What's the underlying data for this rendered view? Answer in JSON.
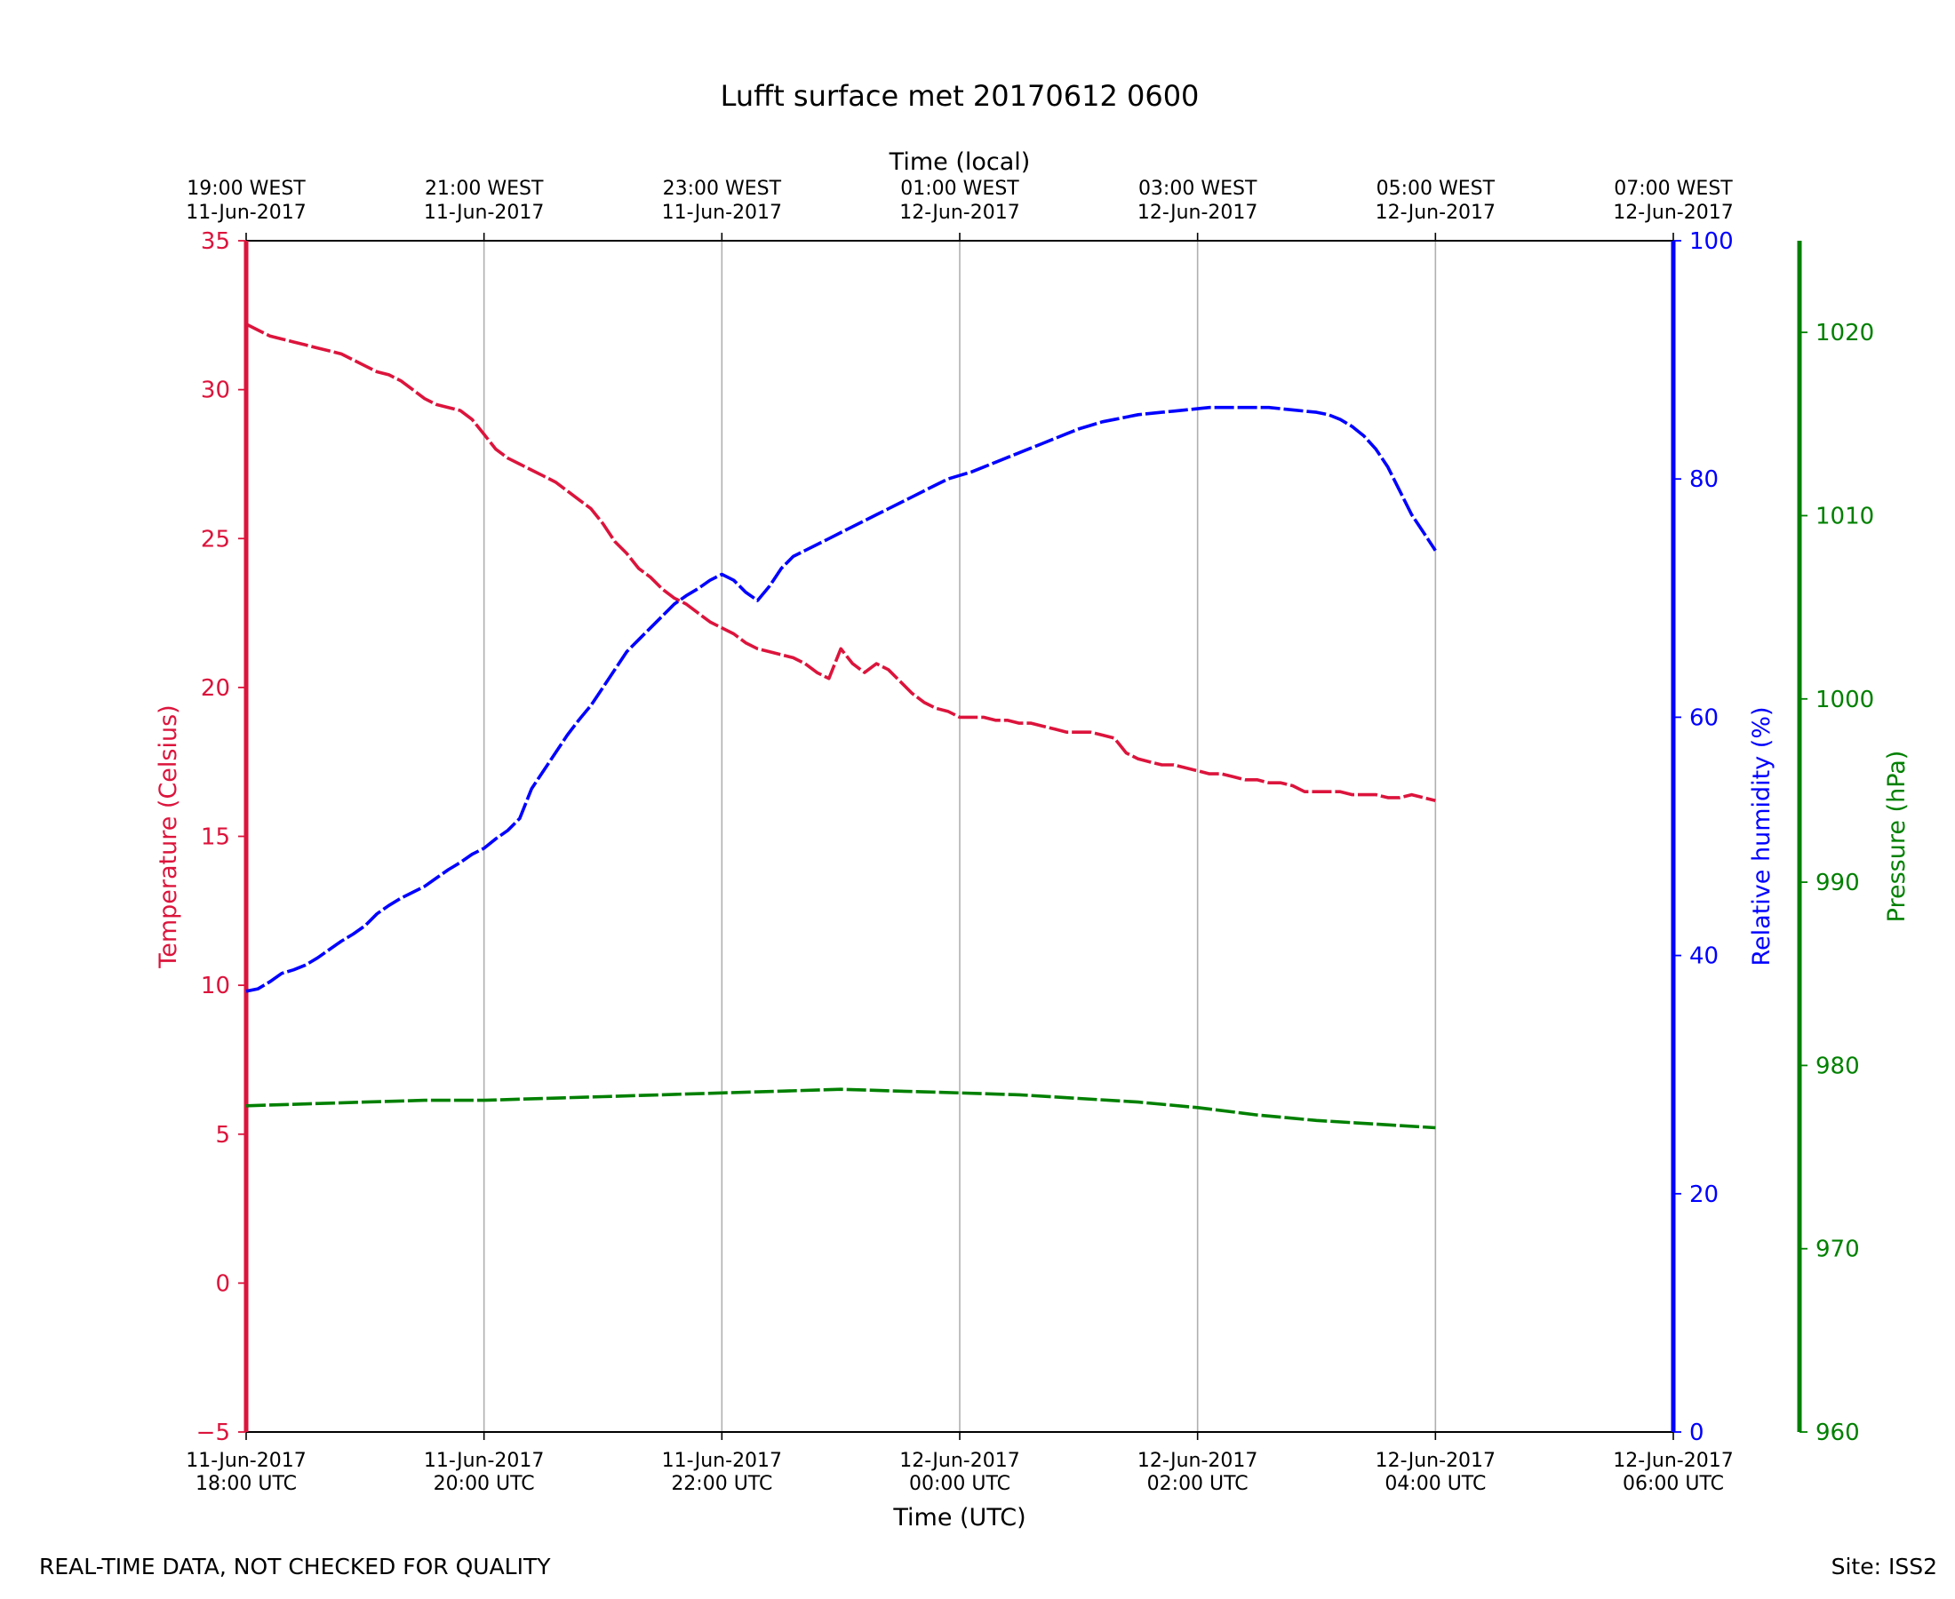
{
  "chart_data": {
    "type": "line",
    "title": "Lufft surface met 20170612 0600",
    "top_axis_title": "Time (local)",
    "top_ticks": [
      {
        "x": 0,
        "label1": "19:00 WEST",
        "label2": "11-Jun-2017"
      },
      {
        "x": 2,
        "label1": "21:00 WEST",
        "label2": "11-Jun-2017"
      },
      {
        "x": 4,
        "label1": "23:00 WEST",
        "label2": "11-Jun-2017"
      },
      {
        "x": 6,
        "label1": "01:00 WEST",
        "label2": "12-Jun-2017"
      },
      {
        "x": 8,
        "label1": "03:00 WEST",
        "label2": "12-Jun-2017"
      },
      {
        "x": 10,
        "label1": "05:00 WEST",
        "label2": "12-Jun-2017"
      },
      {
        "x": 12,
        "label1": "07:00 WEST",
        "label2": "12-Jun-2017"
      }
    ],
    "xlabel": "Time (UTC)",
    "x_ticks": [
      {
        "x": 0,
        "label1": "11-Jun-2017",
        "label2": "18:00 UTC"
      },
      {
        "x": 2,
        "label1": "11-Jun-2017",
        "label2": "20:00 UTC"
      },
      {
        "x": 4,
        "label1": "11-Jun-2017",
        "label2": "22:00 UTC"
      },
      {
        "x": 6,
        "label1": "12-Jun-2017",
        "label2": "00:00 UTC"
      },
      {
        "x": 8,
        "label1": "12-Jun-2017",
        "label2": "02:00 UTC"
      },
      {
        "x": 10,
        "label1": "12-Jun-2017",
        "label2": "04:00 UTC"
      },
      {
        "x": 12,
        "label1": "12-Jun-2017",
        "label2": "06:00 UTC"
      }
    ],
    "xlim": [
      0,
      12
    ],
    "grid": "vertical",
    "axes": {
      "temperature": {
        "label": "Temperature (Celsius)",
        "color": "#dc143c",
        "ylim": [
          -5,
          35
        ],
        "ticks": [
          -5,
          0,
          5,
          10,
          15,
          20,
          25,
          30,
          35
        ]
      },
      "humidity": {
        "label": "Relative humidity (%)",
        "color": "#0000ff",
        "ylim": [
          0,
          100
        ],
        "ticks": [
          0,
          20,
          40,
          60,
          80,
          100
        ]
      },
      "pressure": {
        "label": "Pressure (hPa)",
        "color": "#008000",
        "ylim": [
          960,
          1025
        ],
        "ticks": [
          960,
          970,
          980,
          990,
          1000,
          1010,
          1020
        ]
      }
    },
    "series": [
      {
        "axis": "temperature",
        "points": [
          [
            0,
            32.2
          ],
          [
            0.1,
            32.0
          ],
          [
            0.2,
            31.8
          ],
          [
            0.3,
            31.7
          ],
          [
            0.4,
            31.6
          ],
          [
            0.5,
            31.5
          ],
          [
            0.6,
            31.4
          ],
          [
            0.7,
            31.3
          ],
          [
            0.8,
            31.2
          ],
          [
            0.9,
            31.0
          ],
          [
            1.0,
            30.8
          ],
          [
            1.1,
            30.6
          ],
          [
            1.2,
            30.5
          ],
          [
            1.3,
            30.3
          ],
          [
            1.4,
            30.0
          ],
          [
            1.5,
            29.7
          ],
          [
            1.6,
            29.5
          ],
          [
            1.7,
            29.4
          ],
          [
            1.8,
            29.3
          ],
          [
            1.9,
            29.0
          ],
          [
            2.0,
            28.5
          ],
          [
            2.1,
            28.0
          ],
          [
            2.2,
            27.7
          ],
          [
            2.3,
            27.5
          ],
          [
            2.4,
            27.3
          ],
          [
            2.5,
            27.1
          ],
          [
            2.6,
            26.9
          ],
          [
            2.7,
            26.6
          ],
          [
            2.8,
            26.3
          ],
          [
            2.9,
            26.0
          ],
          [
            3.0,
            25.5
          ],
          [
            3.1,
            24.9
          ],
          [
            3.2,
            24.5
          ],
          [
            3.3,
            24.0
          ],
          [
            3.4,
            23.7
          ],
          [
            3.5,
            23.3
          ],
          [
            3.6,
            23.0
          ],
          [
            3.7,
            22.8
          ],
          [
            3.8,
            22.5
          ],
          [
            3.9,
            22.2
          ],
          [
            4.0,
            22.0
          ],
          [
            4.1,
            21.8
          ],
          [
            4.2,
            21.5
          ],
          [
            4.3,
            21.3
          ],
          [
            4.4,
            21.2
          ],
          [
            4.5,
            21.1
          ],
          [
            4.6,
            21.0
          ],
          [
            4.7,
            20.8
          ],
          [
            4.8,
            20.5
          ],
          [
            4.9,
            20.3
          ],
          [
            5.0,
            21.3
          ],
          [
            5.1,
            20.8
          ],
          [
            5.2,
            20.5
          ],
          [
            5.3,
            20.8
          ],
          [
            5.4,
            20.6
          ],
          [
            5.5,
            20.2
          ],
          [
            5.6,
            19.8
          ],
          [
            5.7,
            19.5
          ],
          [
            5.8,
            19.3
          ],
          [
            5.9,
            19.2
          ],
          [
            6.0,
            19.0
          ],
          [
            6.1,
            19.0
          ],
          [
            6.2,
            19.0
          ],
          [
            6.3,
            18.9
          ],
          [
            6.4,
            18.9
          ],
          [
            6.5,
            18.8
          ],
          [
            6.6,
            18.8
          ],
          [
            6.7,
            18.7
          ],
          [
            6.8,
            18.6
          ],
          [
            6.9,
            18.5
          ],
          [
            7.0,
            18.5
          ],
          [
            7.1,
            18.5
          ],
          [
            7.2,
            18.4
          ],
          [
            7.3,
            18.3
          ],
          [
            7.4,
            17.8
          ],
          [
            7.5,
            17.6
          ],
          [
            7.6,
            17.5
          ],
          [
            7.7,
            17.4
          ],
          [
            7.8,
            17.4
          ],
          [
            7.9,
            17.3
          ],
          [
            8.0,
            17.2
          ],
          [
            8.1,
            17.1
          ],
          [
            8.2,
            17.1
          ],
          [
            8.3,
            17.0
          ],
          [
            8.4,
            16.9
          ],
          [
            8.5,
            16.9
          ],
          [
            8.6,
            16.8
          ],
          [
            8.7,
            16.8
          ],
          [
            8.8,
            16.7
          ],
          [
            8.9,
            16.5
          ],
          [
            9.0,
            16.5
          ],
          [
            9.1,
            16.5
          ],
          [
            9.2,
            16.5
          ],
          [
            9.3,
            16.4
          ],
          [
            9.4,
            16.4
          ],
          [
            9.5,
            16.4
          ],
          [
            9.6,
            16.3
          ],
          [
            9.7,
            16.3
          ],
          [
            9.8,
            16.4
          ],
          [
            9.9,
            16.3
          ],
          [
            10.0,
            16.2
          ]
        ],
        "color": "#dc143c",
        "dashed": true
      },
      {
        "axis": "humidity",
        "points": [
          [
            0,
            37
          ],
          [
            0.1,
            37.2
          ],
          [
            0.2,
            37.8
          ],
          [
            0.3,
            38.5
          ],
          [
            0.4,
            38.8
          ],
          [
            0.5,
            39.2
          ],
          [
            0.6,
            39.8
          ],
          [
            0.7,
            40.5
          ],
          [
            0.8,
            41.2
          ],
          [
            0.9,
            41.8
          ],
          [
            1.0,
            42.5
          ],
          [
            1.1,
            43.5
          ],
          [
            1.2,
            44.2
          ],
          [
            1.3,
            44.8
          ],
          [
            1.4,
            45.3
          ],
          [
            1.5,
            45.8
          ],
          [
            1.6,
            46.5
          ],
          [
            1.7,
            47.2
          ],
          [
            1.8,
            47.8
          ],
          [
            1.9,
            48.5
          ],
          [
            2.0,
            49.0
          ],
          [
            2.1,
            49.8
          ],
          [
            2.2,
            50.5
          ],
          [
            2.3,
            51.5
          ],
          [
            2.4,
            54.0
          ],
          [
            2.5,
            55.5
          ],
          [
            2.6,
            57.0
          ],
          [
            2.7,
            58.5
          ],
          [
            2.8,
            59.8
          ],
          [
            2.9,
            61.0
          ],
          [
            3.0,
            62.5
          ],
          [
            3.1,
            64.0
          ],
          [
            3.2,
            65.5
          ],
          [
            3.3,
            66.5
          ],
          [
            3.4,
            67.5
          ],
          [
            3.5,
            68.5
          ],
          [
            3.6,
            69.5
          ],
          [
            3.7,
            70.2
          ],
          [
            3.8,
            70.8
          ],
          [
            3.9,
            71.5
          ],
          [
            4.0,
            72.0
          ],
          [
            4.1,
            71.5
          ],
          [
            4.2,
            70.5
          ],
          [
            4.3,
            69.8
          ],
          [
            4.4,
            71.0
          ],
          [
            4.5,
            72.5
          ],
          [
            4.6,
            73.5
          ],
          [
            4.7,
            74.0
          ],
          [
            4.8,
            74.5
          ],
          [
            4.9,
            75.0
          ],
          [
            5.0,
            75.5
          ],
          [
            5.1,
            76.0
          ],
          [
            5.2,
            76.5
          ],
          [
            5.3,
            77.0
          ],
          [
            5.4,
            77.5
          ],
          [
            5.5,
            78.0
          ],
          [
            5.6,
            78.5
          ],
          [
            5.7,
            79.0
          ],
          [
            5.8,
            79.5
          ],
          [
            5.9,
            80.0
          ],
          [
            6.0,
            80.3
          ],
          [
            6.1,
            80.6
          ],
          [
            6.2,
            81.0
          ],
          [
            6.3,
            81.4
          ],
          [
            6.4,
            81.8
          ],
          [
            6.5,
            82.2
          ],
          [
            6.6,
            82.6
          ],
          [
            6.7,
            83.0
          ],
          [
            6.8,
            83.4
          ],
          [
            6.9,
            83.8
          ],
          [
            7.0,
            84.2
          ],
          [
            7.1,
            84.5
          ],
          [
            7.2,
            84.8
          ],
          [
            7.3,
            85.0
          ],
          [
            7.4,
            85.2
          ],
          [
            7.5,
            85.4
          ],
          [
            7.6,
            85.5
          ],
          [
            7.7,
            85.6
          ],
          [
            7.8,
            85.7
          ],
          [
            7.9,
            85.8
          ],
          [
            8.0,
            85.9
          ],
          [
            8.1,
            86.0
          ],
          [
            8.2,
            86.0
          ],
          [
            8.3,
            86.0
          ],
          [
            8.4,
            86.0
          ],
          [
            8.5,
            86.0
          ],
          [
            8.6,
            86.0
          ],
          [
            8.7,
            85.9
          ],
          [
            8.8,
            85.8
          ],
          [
            8.9,
            85.7
          ],
          [
            9.0,
            85.6
          ],
          [
            9.1,
            85.4
          ],
          [
            9.2,
            85.0
          ],
          [
            9.3,
            84.4
          ],
          [
            9.4,
            83.6
          ],
          [
            9.5,
            82.5
          ],
          [
            9.6,
            81.0
          ],
          [
            9.7,
            79.0
          ],
          [
            9.8,
            77.0
          ],
          [
            9.9,
            75.5
          ],
          [
            10.0,
            74.0
          ]
        ],
        "color": "#0000ff",
        "dashed": true
      },
      {
        "axis": "pressure",
        "points": [
          [
            0,
            977.8
          ],
          [
            0.5,
            977.9
          ],
          [
            1.0,
            978.0
          ],
          [
            1.5,
            978.1
          ],
          [
            2.0,
            978.1
          ],
          [
            2.5,
            978.2
          ],
          [
            3.0,
            978.3
          ],
          [
            3.5,
            978.4
          ],
          [
            4.0,
            978.5
          ],
          [
            4.5,
            978.6
          ],
          [
            5.0,
            978.7
          ],
          [
            5.5,
            978.6
          ],
          [
            6.0,
            978.5
          ],
          [
            6.5,
            978.4
          ],
          [
            7.0,
            978.2
          ],
          [
            7.5,
            978.0
          ],
          [
            8.0,
            977.7
          ],
          [
            8.5,
            977.3
          ],
          [
            9.0,
            977.0
          ],
          [
            9.5,
            976.8
          ],
          [
            10.0,
            976.6
          ]
        ],
        "color": "#008000",
        "dashed": true
      }
    ]
  },
  "footer": {
    "note": "REAL-TIME DATA, NOT CHECKED FOR QUALITY",
    "site": "Site: ISS2"
  }
}
